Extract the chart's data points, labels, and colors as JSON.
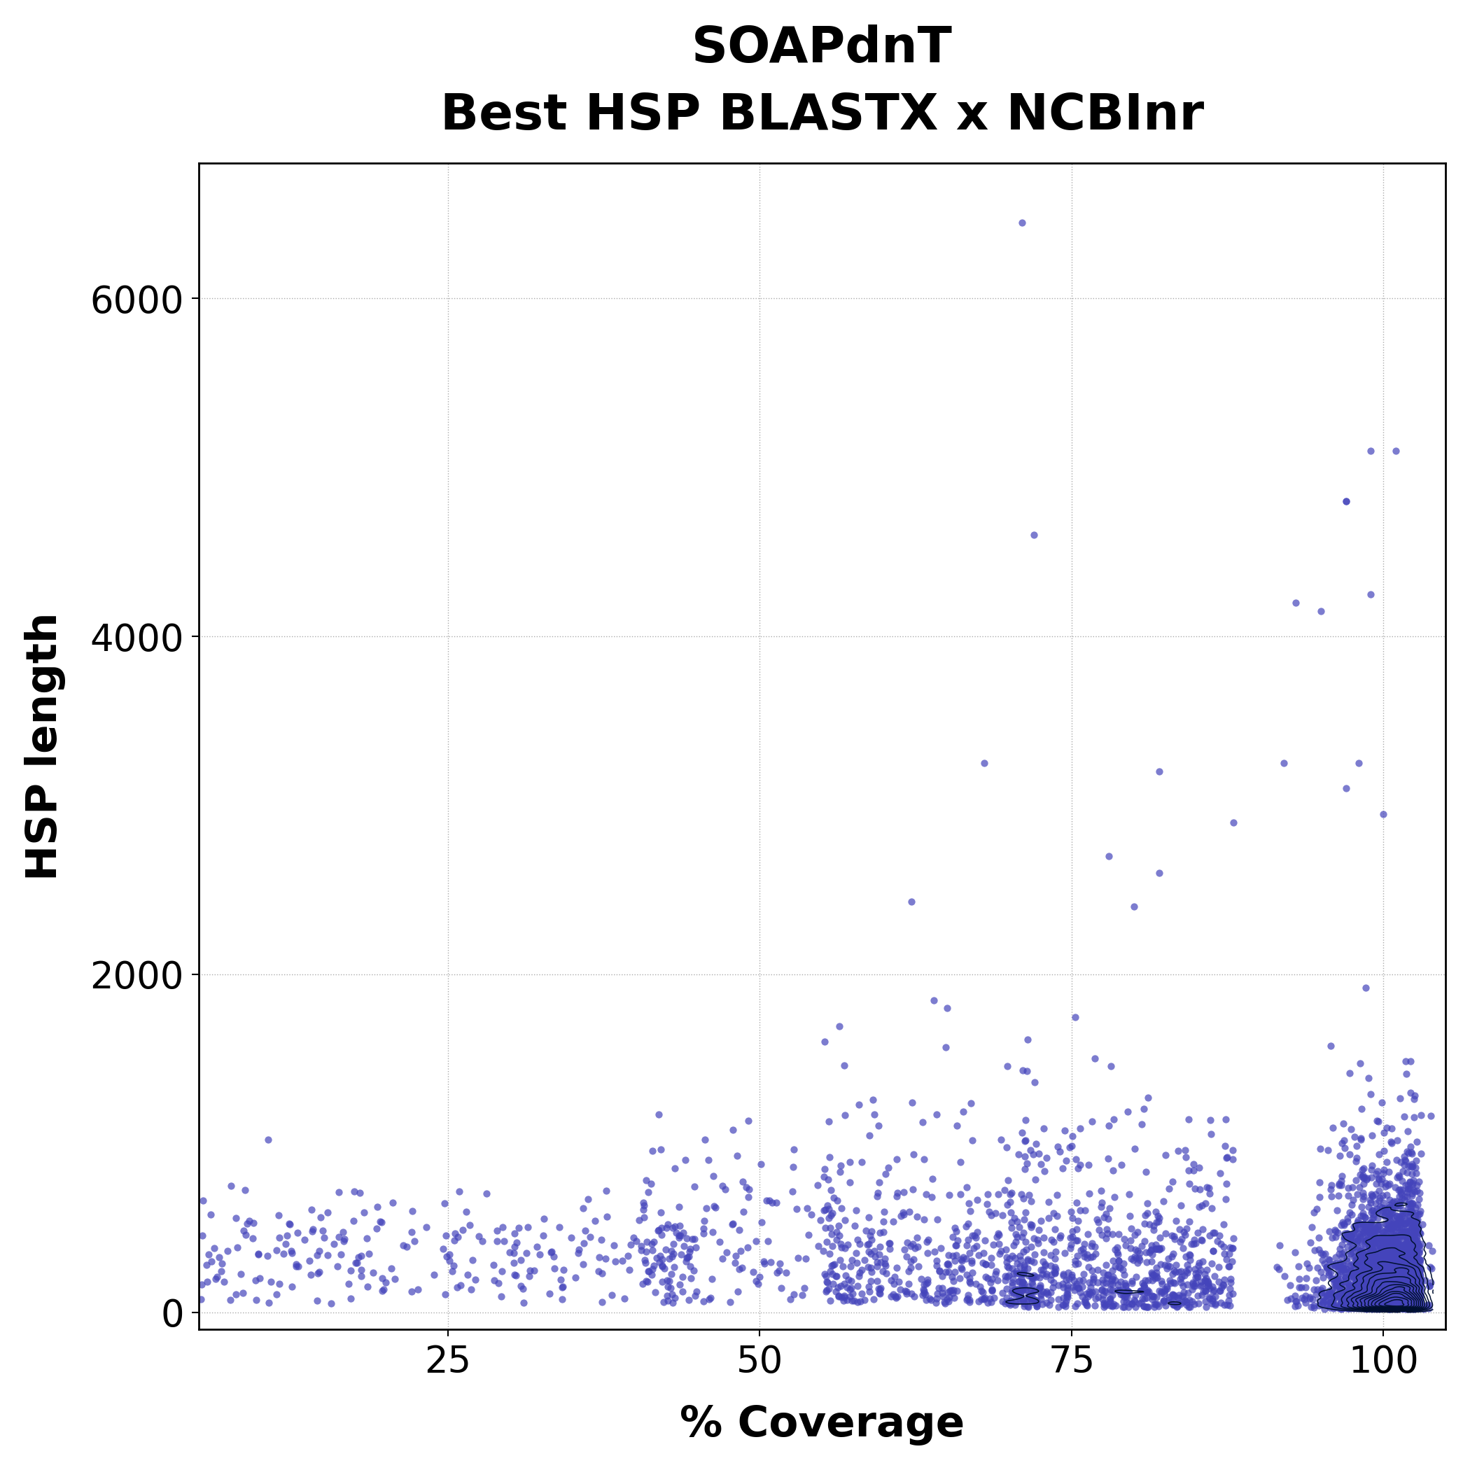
{
  "title_line1": "SOAPdnT",
  "title_line2": "Best HSP BLASTX x NCBInr",
  "xlabel": "% Coverage",
  "ylabel": "HSP length",
  "title_fontsize": 52,
  "axis_label_fontsize": 44,
  "tick_fontsize": 38,
  "dot_color": "#4444bb",
  "dot_alpha": 0.7,
  "dot_size": 55,
  "contour_color": "#001030",
  "xlim": [
    5,
    105
  ],
  "ylim": [
    -100,
    6800
  ],
  "xticks": [
    25,
    50,
    75,
    100
  ],
  "yticks": [
    0,
    2000,
    4000,
    6000
  ],
  "background_color": "#ffffff",
  "grid_color": "#aaaaaa",
  "seed": 42
}
